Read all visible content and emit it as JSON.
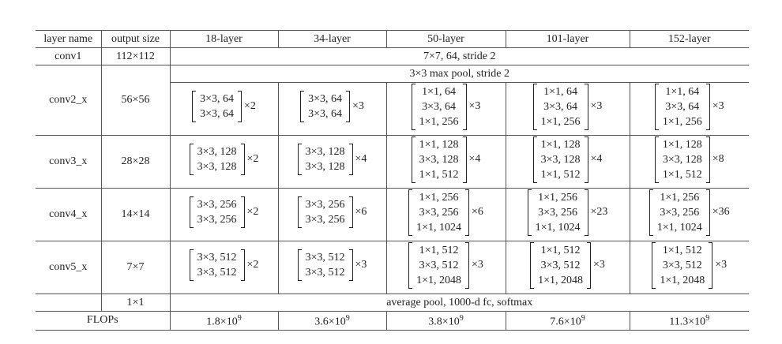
{
  "table": {
    "header": [
      "layer name",
      "output size",
      "18-layer",
      "34-layer",
      "50-layer",
      "101-layer",
      "152-layer"
    ],
    "conv1": {
      "name": "conv1",
      "size": "112×112",
      "spec": "7×7, 64, stride 2"
    },
    "stages": [
      {
        "name": "conv2_x",
        "size": "56×56",
        "pool": "3×3 max pool, stride 2",
        "blocks": [
          {
            "rows": [
              "3×3, 64",
              "3×3, 64"
            ],
            "times": "×2"
          },
          {
            "rows": [
              "3×3, 64",
              "3×3, 64"
            ],
            "times": "×3"
          },
          {
            "rows": [
              "1×1, 64",
              "3×3, 64",
              "1×1, 256"
            ],
            "times": "×3"
          },
          {
            "rows": [
              "1×1, 64",
              "3×3, 64",
              "1×1, 256"
            ],
            "times": "×3"
          },
          {
            "rows": [
              "1×1, 64",
              "3×3, 64",
              "1×1, 256"
            ],
            "times": "×3"
          }
        ]
      },
      {
        "name": "conv3_x",
        "size": "28×28",
        "blocks": [
          {
            "rows": [
              "3×3, 128",
              "3×3, 128"
            ],
            "times": "×2"
          },
          {
            "rows": [
              "3×3, 128",
              "3×3, 128"
            ],
            "times": "×4"
          },
          {
            "rows": [
              "1×1, 128",
              "3×3, 128",
              "1×1, 512"
            ],
            "times": "×4"
          },
          {
            "rows": [
              "1×1, 128",
              "3×3, 128",
              "1×1, 512"
            ],
            "times": "×4"
          },
          {
            "rows": [
              "1×1, 128",
              "3×3, 128",
              "1×1, 512"
            ],
            "times": "×8"
          }
        ]
      },
      {
        "name": "conv4_x",
        "size": "14×14",
        "blocks": [
          {
            "rows": [
              "3×3, 256",
              "3×3, 256"
            ],
            "times": "×2"
          },
          {
            "rows": [
              "3×3, 256",
              "3×3, 256"
            ],
            "times": "×6"
          },
          {
            "rows": [
              "1×1, 256",
              "3×3, 256",
              "1×1, 1024"
            ],
            "times": "×6"
          },
          {
            "rows": [
              "1×1, 256",
              "3×3, 256",
              "1×1, 1024"
            ],
            "times": "×23"
          },
          {
            "rows": [
              "1×1, 256",
              "3×3, 256",
              "1×1, 1024"
            ],
            "times": "×36"
          }
        ]
      },
      {
        "name": "conv5_x",
        "size": "7×7",
        "blocks": [
          {
            "rows": [
              "3×3, 512",
              "3×3, 512"
            ],
            "times": "×2"
          },
          {
            "rows": [
              "3×3, 512",
              "3×3, 512"
            ],
            "times": "×3"
          },
          {
            "rows": [
              "1×1, 512",
              "3×3, 512",
              "1×1, 2048"
            ],
            "times": "×3"
          },
          {
            "rows": [
              "1×1, 512",
              "3×3, 512",
              "1×1, 2048"
            ],
            "times": "×3"
          },
          {
            "rows": [
              "1×1, 512",
              "3×3, 512",
              "1×1, 2048"
            ],
            "times": "×3"
          }
        ]
      }
    ],
    "final": {
      "size": "1×1",
      "spec": "average pool, 1000-d fc, softmax"
    },
    "flops": {
      "name": "FLOPs",
      "values": [
        {
          "base": "1.8×10",
          "exp": "9"
        },
        {
          "base": "3.6×10",
          "exp": "9"
        },
        {
          "base": "3.8×10",
          "exp": "9"
        },
        {
          "base": "7.6×10",
          "exp": "9"
        },
        {
          "base": "11.3×10",
          "exp": "9"
        }
      ]
    }
  }
}
